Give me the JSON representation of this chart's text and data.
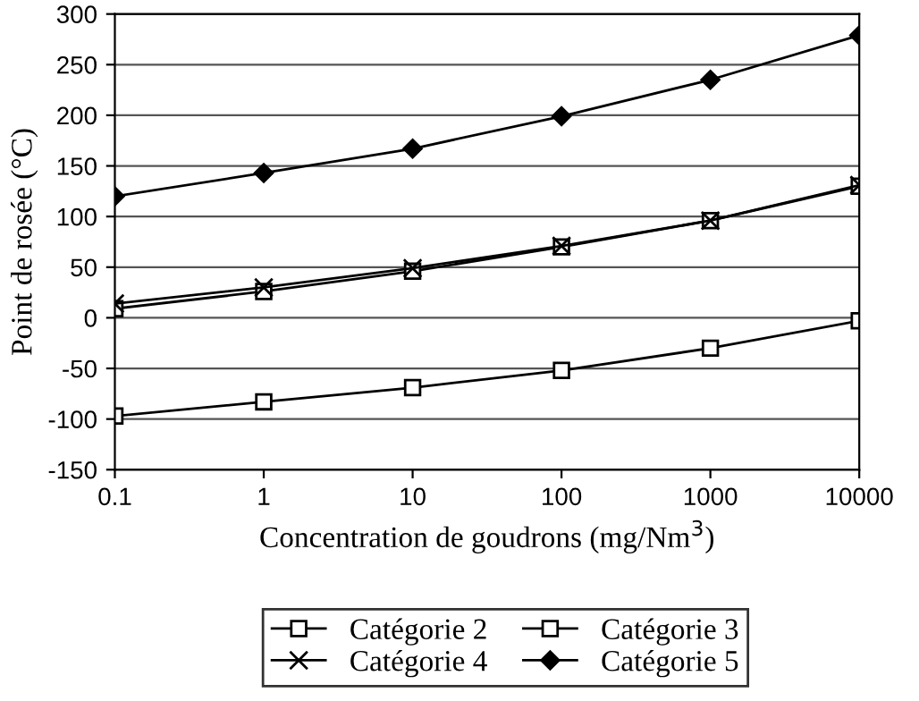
{
  "chart_data": {
    "type": "line",
    "xlabel": "Concentration de goudrons (mg/Nm$^{3}$)",
    "ylabel": "Point de rosée (°C)",
    "x": [
      0.1,
      1,
      10,
      100,
      1000,
      10000
    ],
    "series": [
      {
        "name": "Catégorie 2",
        "color": "#000000",
        "marker": "square",
        "values": [
          -97,
          -83,
          -69,
          -52,
          -30,
          -3
        ]
      },
      {
        "name": "Catégorie 3",
        "color": "#000000",
        "marker": "square",
        "values": [
          9,
          26,
          46,
          70,
          96,
          130
        ]
      },
      {
        "name": "Catégorie 4",
        "color": "#000000",
        "marker": "cross",
        "values": [
          14,
          30,
          49,
          71,
          96,
          131
        ]
      },
      {
        "name": "Catégorie 5",
        "color": "#000000",
        "marker": "diamond",
        "values": [
          120,
          143,
          167,
          199,
          235,
          279
        ]
      }
    ],
    "log": "x",
    "xlim": [
      0.1,
      10000
    ],
    "xticks": [
      0.1,
      1,
      10,
      100,
      1000,
      10000
    ],
    "ylim": [
      -150,
      300
    ],
    "yticks": [
      -150,
      -100,
      -50,
      0,
      50,
      100,
      150,
      200,
      250,
      300
    ],
    "grid": "y",
    "legend": "bottom",
    "line_style": "solid"
  }
}
